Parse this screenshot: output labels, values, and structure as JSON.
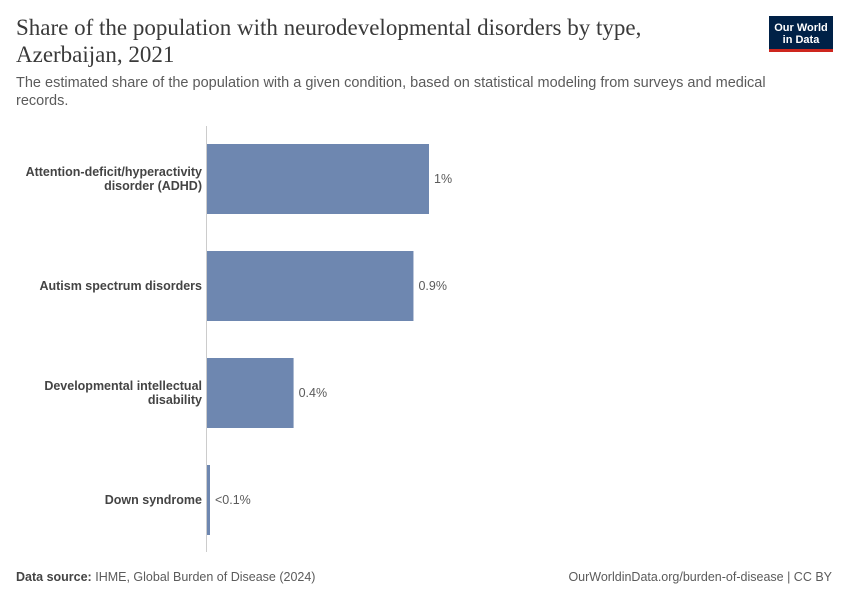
{
  "header": {
    "title": "Share of the population with neurodevelopmental disorders by type, Azerbaijan, 2021",
    "subtitle": "The estimated share of the population with a given condition, based on statistical modeling from surveys and medical records.",
    "logo_line1": "Our World",
    "logo_line2": "in Data"
  },
  "footer": {
    "source_label": "Data source:",
    "source_text": "IHME, Global Burden of Disease (2024)",
    "link_text": "OurWorldinData.org/burden-of-disease | CC BY"
  },
  "colors": {
    "bar": "#6e87b0",
    "logo_bg": "#002147",
    "logo_accent": "#ce261e"
  },
  "chart_data": {
    "type": "bar",
    "orientation": "horizontal",
    "unit": "%",
    "categories": [
      [
        "Attention-deficit/hyperactivity",
        "disorder (ADHD)"
      ],
      [
        "Autism spectrum disorders"
      ],
      [
        "Developmental intellectual",
        "disability"
      ],
      [
        "Down syndrome"
      ]
    ],
    "values": [
      1.0,
      0.93,
      0.39,
      0.01
    ],
    "value_labels": [
      "1%",
      "0.9%",
      "0.4%",
      "<0.1%"
    ],
    "xlim": [
      0,
      1.0
    ],
    "grid": false
  }
}
